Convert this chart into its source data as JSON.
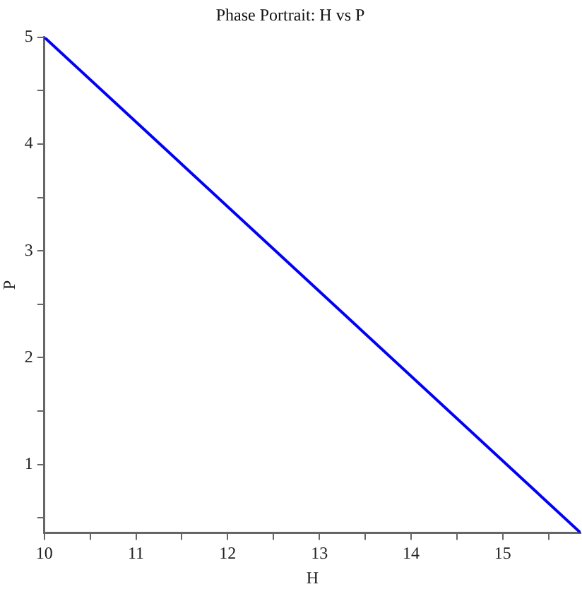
{
  "chart_data": {
    "type": "line",
    "title": "Phase Portrait: H vs P",
    "xlabel": "H",
    "ylabel": "P",
    "series": [
      {
        "color": "#0000ff",
        "x": [
          10,
          15.85
        ],
        "values": [
          5,
          0.36
        ]
      }
    ],
    "xlim": [
      10,
      15.85
    ],
    "ylim": [
      0.36,
      5
    ],
    "xticks": [
      10,
      {
        "value": 10.5,
        "label": null
      },
      11,
      {
        "value": 11.5,
        "label": null
      },
      12,
      {
        "value": 12.5,
        "label": null
      },
      13,
      {
        "value": 13.5,
        "label": null
      },
      14,
      {
        "value": 14.5,
        "label": null
      },
      15,
      {
        "value": 15.5,
        "label": null
      }
    ],
    "yticks": [
      {
        "value": 0.5,
        "label": null
      },
      1,
      {
        "value": 1.5,
        "label": null
      },
      2,
      {
        "value": 2.5,
        "label": null
      },
      3,
      {
        "value": 3.5,
        "label": null
      },
      4,
      {
        "value": 4.5,
        "label": null
      },
      5
    ],
    "grid": false,
    "legend": false,
    "marker": "none",
    "line_style": "solid"
  }
}
